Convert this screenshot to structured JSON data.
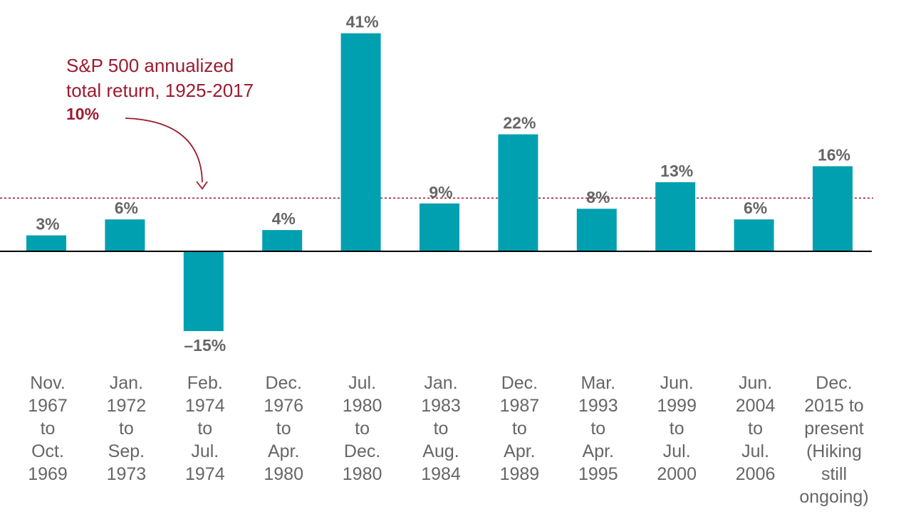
{
  "chart_data": {
    "type": "bar",
    "categories": [
      [
        "Nov.",
        "1967",
        "to",
        "Oct.",
        "1969"
      ],
      [
        "Jan.",
        "1972",
        "to",
        "Sep.",
        "1973"
      ],
      [
        "Feb.",
        "1974",
        "to",
        "Jul.",
        "1974"
      ],
      [
        "Dec.",
        "1976",
        "to",
        "Apr.",
        "1980"
      ],
      [
        "Jul.",
        "1980",
        "to",
        "Dec.",
        "1980"
      ],
      [
        "Jan.",
        "1983",
        "to",
        "Aug.",
        "1984"
      ],
      [
        "Dec.",
        "1987",
        "to",
        "Apr.",
        "1989"
      ],
      [
        "Mar.",
        "1993",
        "to",
        "Apr.",
        "1995"
      ],
      [
        "Jun.",
        "1999",
        "to",
        "Jul.",
        "2000"
      ],
      [
        "Jun.",
        "2004",
        "to",
        "Jul.",
        "2006"
      ],
      [
        "Dec.",
        "2015 to",
        "present",
        "(Hiking",
        "still",
        "ongoing)"
      ]
    ],
    "values": [
      3,
      6,
      -15,
      4,
      41,
      9,
      22,
      8,
      13,
      6,
      16
    ],
    "value_labels": [
      "3%",
      "6%",
      "–15%",
      "4%",
      "41%",
      "9%",
      "22%",
      "8%",
      "13%",
      "6%",
      "16%"
    ],
    "ylim": [
      -15,
      41
    ],
    "reference_line": {
      "value": 10,
      "style": "dotted",
      "label_lines": [
        "S&P 500 annualized",
        "total return, 1925-2017"
      ],
      "label_value": "10%"
    },
    "grid": false,
    "title": "",
    "xlabel": "",
    "ylabel": ""
  },
  "colors": {
    "bar": "#00a0b0",
    "annotation": "#9b1b30",
    "text": "#666666",
    "axis": "#000000"
  }
}
